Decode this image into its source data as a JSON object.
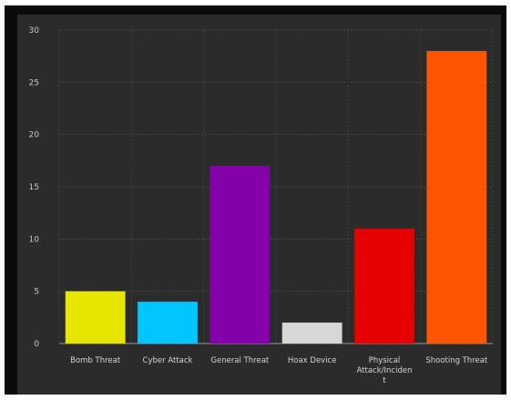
{
  "chart_data": {
    "type": "bar",
    "categories": [
      "Bomb Threat",
      "Cyber Attack",
      "General Threat",
      "Hoax Device",
      "Physical Attack/Incident",
      "Shooting Threat"
    ],
    "category_label_lines": [
      [
        "Bomb Threat"
      ],
      [
        "Cyber Attack"
      ],
      [
        "General Threat"
      ],
      [
        "Hoax Device"
      ],
      [
        "Physical",
        "Attack/Inciden",
        "t"
      ],
      [
        "Shooting Threat"
      ]
    ],
    "values": [
      5,
      4,
      17,
      2,
      11,
      28
    ],
    "colors": [
      "#e6e600",
      "#00c5ff",
      "#8400a8",
      "#d7d7d7",
      "#e60000",
      "#ff5500"
    ],
    "ylim": [
      0,
      30
    ],
    "yticks": [
      "0",
      "5",
      "10",
      "15",
      "20",
      "25",
      "30"
    ],
    "grid": true,
    "legend": "none",
    "background": "#2b2b2b"
  }
}
